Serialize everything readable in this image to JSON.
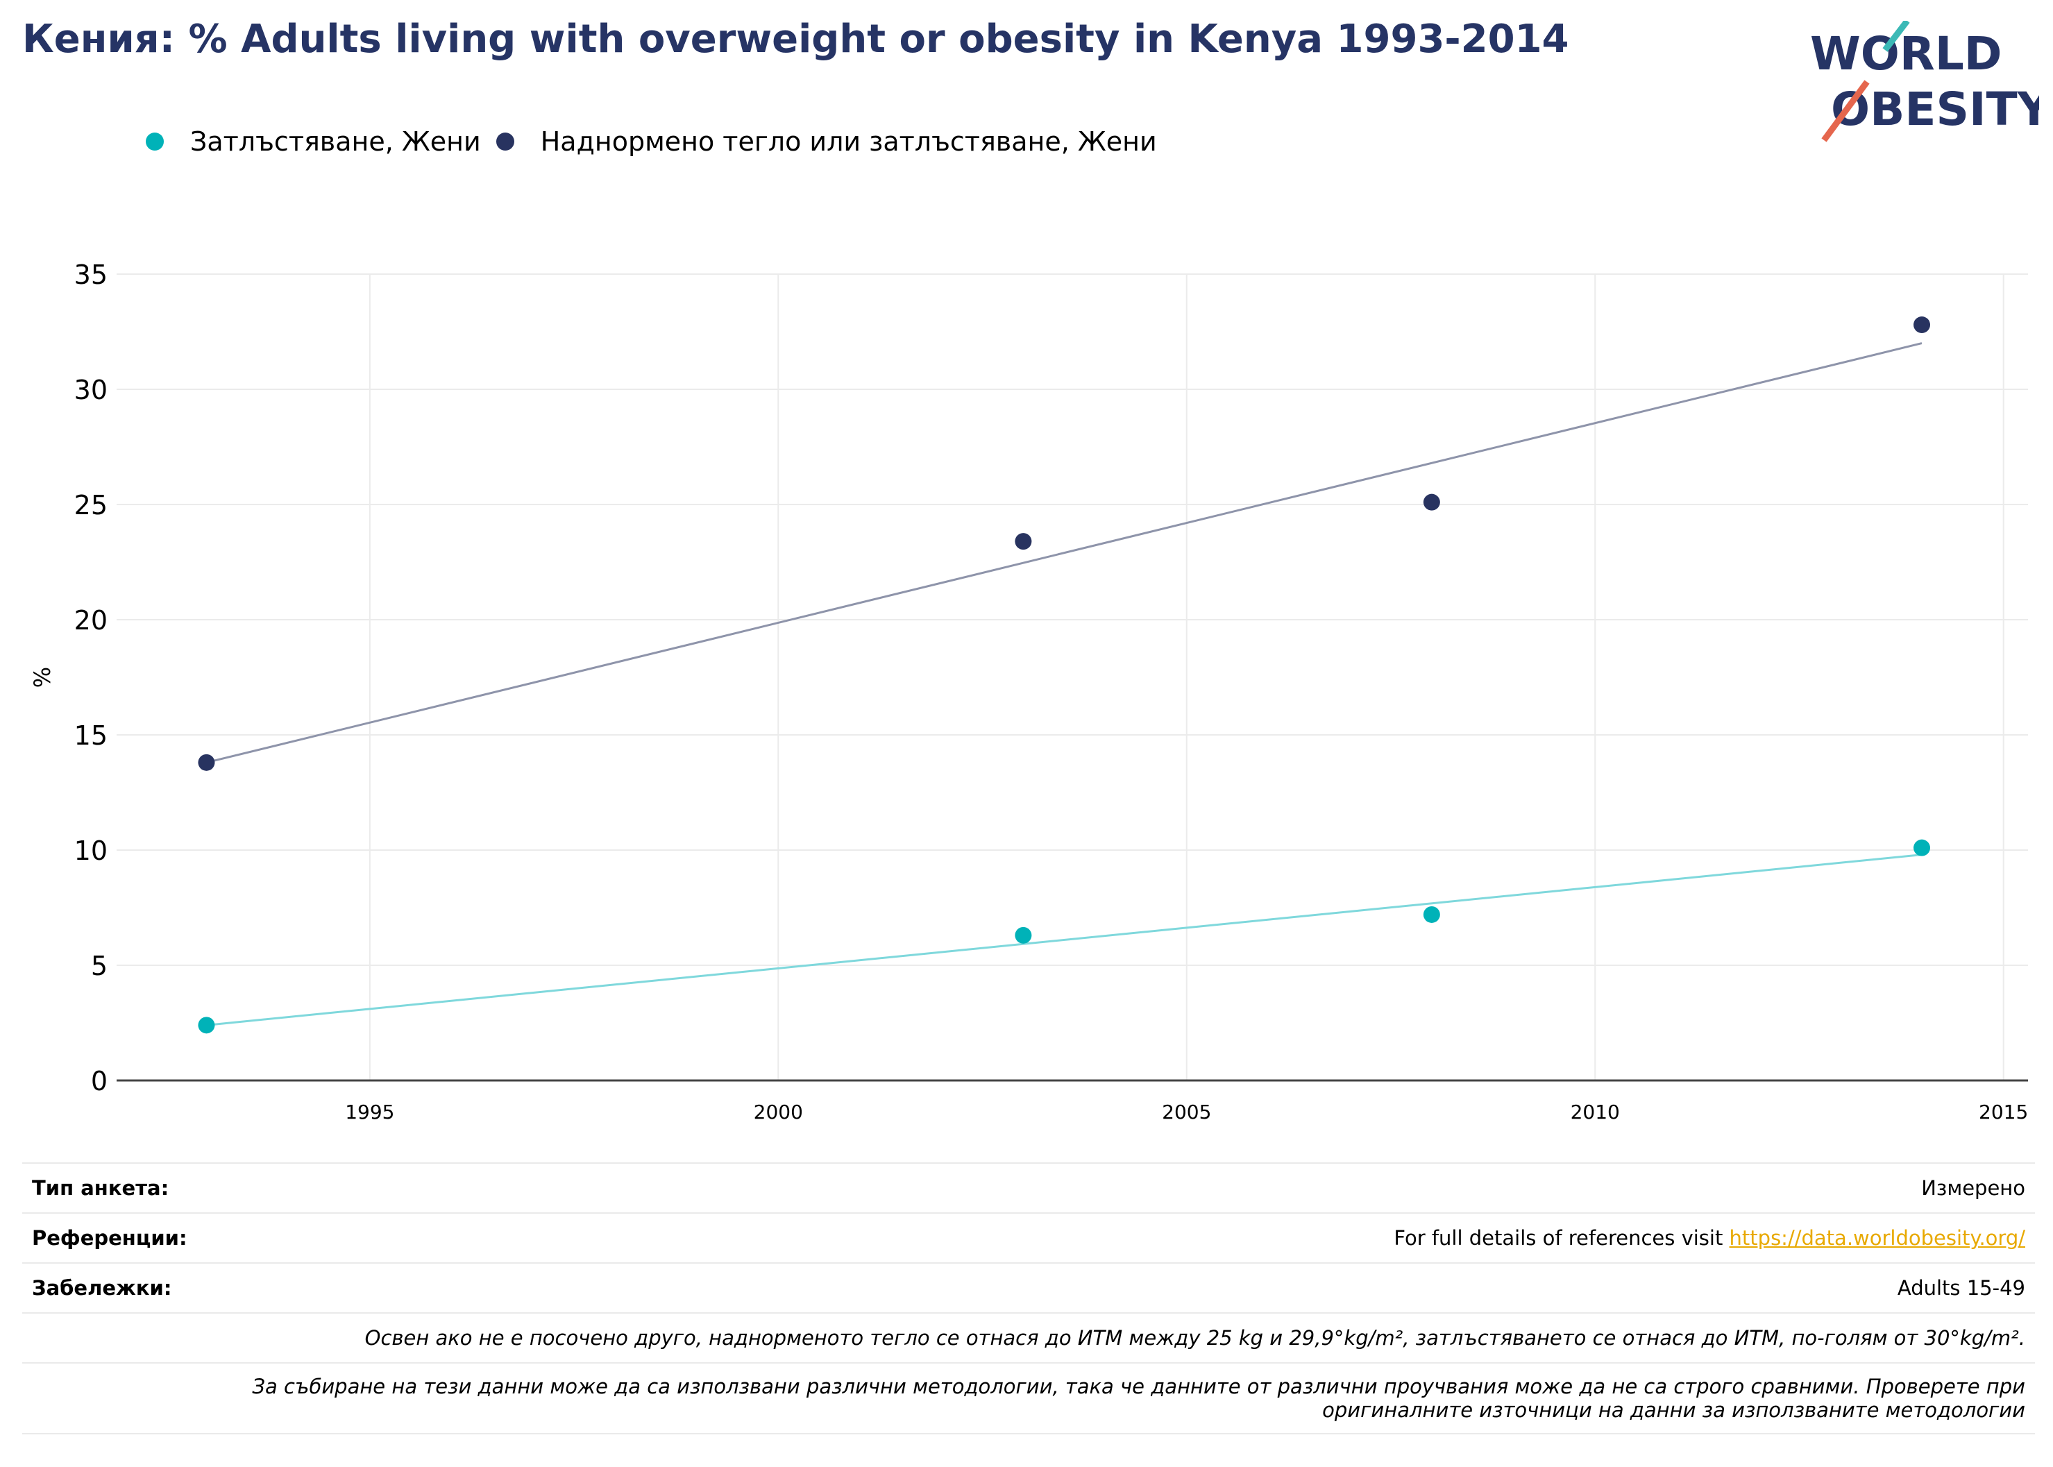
{
  "header": {
    "title": "Кения: % Adults living with overweight or obesity in Kenya 1993-2014"
  },
  "logo": {
    "line1": "WORLD",
    "line2": "OBESITY"
  },
  "legend": [
    {
      "label": "Затлъстяване, Жени",
      "color": "#00b2b8"
    },
    {
      "label": "Наднормено тегло или затлъстяване, Жени",
      "color": "#283360"
    }
  ],
  "chart_data": {
    "type": "scatter",
    "title": "Кения: % Adults living with overweight or obesity in Kenya 1993-2014",
    "xlabel": "",
    "ylabel": "%",
    "xlim": [
      1991.9,
      2015.3
    ],
    "ylim": [
      0,
      35
    ],
    "x_ticks": [
      1995,
      2000,
      2005,
      2010,
      2015
    ],
    "y_ticks": [
      0,
      5,
      10,
      15,
      20,
      25,
      30,
      35
    ],
    "grid": true,
    "legend_position": "top-left",
    "series": [
      {
        "name": "Затлъстяване, Жени",
        "color": "#00b2b8",
        "trend_color": "#7fd8dc",
        "x": [
          1993,
          2003,
          2008,
          2014
        ],
        "y": [
          2.4,
          6.3,
          7.2,
          10.1
        ],
        "trend": {
          "x": [
            1993,
            2014
          ],
          "y": [
            2.4,
            9.8
          ]
        }
      },
      {
        "name": "Наднормено тегло или затлъстяване, Жени",
        "color": "#283360",
        "trend_color": "#8e94aa",
        "x": [
          1993,
          2003,
          2008,
          2014
        ],
        "y": [
          13.8,
          23.4,
          25.1,
          32.8
        ],
        "trend": {
          "x": [
            1993,
            2014
          ],
          "y": [
            13.8,
            32.0
          ]
        }
      }
    ]
  },
  "info": {
    "survey_label": "Тип анкета:",
    "survey_value": "Измерено",
    "refs_label": "Референции:",
    "refs_text": "For full details of references visit ",
    "refs_link": "https://data.worldobesity.org/",
    "notes_label": "Забележки:",
    "notes_value": "Adults 15-49",
    "note_bmi": "Освен ако не е посочено друго, наднорменото тегло се отнася до ИТМ между 25 kg и 29,9°kg/m², затлъстяването се отнася до ИТМ, по-голям от 30°kg/m².",
    "note_method_1": "За събиране на тези данни може да са използвани различни методологии, така че данните от различни проучвания може да не са строго сравними. Проверете при",
    "note_method_2": "оригиналните източници на данни за използваните методологии"
  }
}
